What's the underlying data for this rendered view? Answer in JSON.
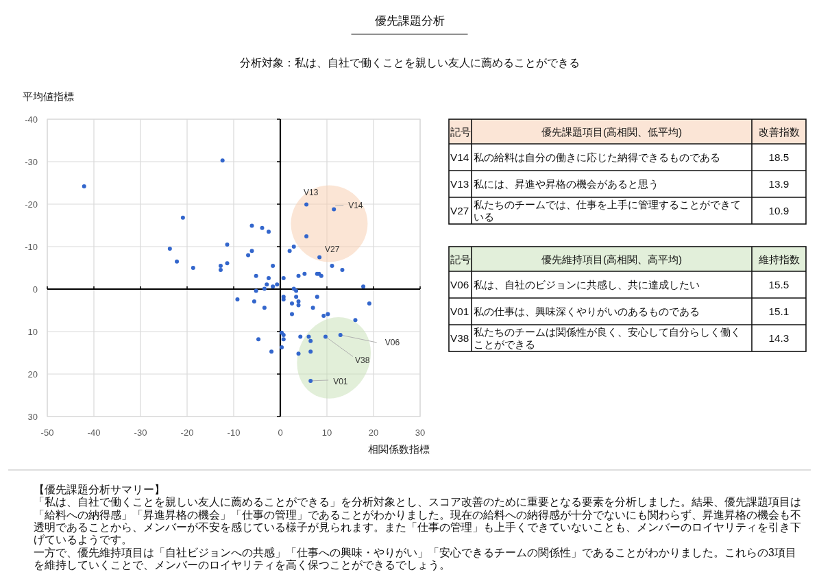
{
  "chart_data": [
    {
      "type": "scatter",
      "title": "優先課題分析",
      "subtitle": "分析対象：私は、自社で働くことを親しい友人に薦めることができる",
      "xlabel": "相関係数指標",
      "ylabel": "平均値指標",
      "xlim": [
        -50,
        30
      ],
      "xticks": [
        -50,
        -40,
        -30,
        -20,
        -10,
        0,
        10,
        20,
        30
      ],
      "ylim": [
        30,
        -40
      ],
      "yticks": [
        -40,
        -30,
        -20,
        -10,
        0,
        10,
        20,
        30
      ],
      "grid": true,
      "marker": "circle",
      "color": "#3366cc",
      "x": [
        -12.4,
        -42.1,
        -20.9,
        -11.4,
        -23.7,
        -22.2,
        -18.7,
        -12.8,
        -12.8,
        -11.4,
        -9.2,
        5.6,
        11.5,
        5.6,
        8.4,
        11.1,
        13.3,
        2.0,
        2.9,
        -6.1,
        -3.9,
        -2.5,
        -6.1,
        -6.9,
        -1.6,
        -5.2,
        -2.5,
        0.7,
        3.9,
        5.2,
        7.9,
        8.3,
        8.8,
        -2.9,
        -1.6,
        -0.7,
        -3.4,
        -5.2,
        2.9,
        3.4,
        17.8,
        -5.6,
        0.7,
        0.7,
        3.4,
        3.9,
        2.5,
        3.9,
        7.9,
        19.1,
        -3.4,
        7.0,
        2.5,
        9.3,
        10.2,
        16.1,
        0.3,
        0.7,
        0.7,
        -4.7,
        4.3,
        6.1,
        6.5,
        9.7,
        12.9,
        0.3,
        -1.9,
        3.9,
        6.5,
        6.5
      ],
      "values": [
        -30.3,
        -24.2,
        -16.8,
        -10.5,
        -9.5,
        -6.5,
        -5.0,
        -5.5,
        -4.5,
        -6.1,
        2.4,
        -19.9,
        -18.8,
        -12.4,
        -7.5,
        -5.5,
        -4.5,
        -9.0,
        -10.0,
        -14.9,
        -14.4,
        -13.5,
        -9.0,
        -8.0,
        -5.5,
        -3.1,
        -2.6,
        -2.6,
        -3.1,
        -3.6,
        -3.6,
        -3.6,
        -3.1,
        -1.1,
        -0.6,
        -1.1,
        -0.1,
        0.4,
        -0.1,
        0.4,
        -0.6,
        2.9,
        1.8,
        2.4,
        1.8,
        2.9,
        3.4,
        3.8,
        1.8,
        3.4,
        4.4,
        4.4,
        5.9,
        6.3,
        5.9,
        7.3,
        10.3,
        10.8,
        11.8,
        11.8,
        11.2,
        11.2,
        12.2,
        11.2,
        10.8,
        13.7,
        14.7,
        15.2,
        14.7,
        21.6
      ],
      "annotations": [
        {
          "text": "V13",
          "x": 5.6,
          "y": -19.9
        },
        {
          "text": "V14",
          "x": 11.5,
          "y": -18.8
        },
        {
          "text": "V27",
          "x": 8.4,
          "y": -7.5
        },
        {
          "text": "V06",
          "x": 12.9,
          "y": 10.8
        },
        {
          "text": "V38",
          "x": 9.7,
          "y": 11.2
        },
        {
          "text": "V01",
          "x": 6.5,
          "y": 21.6
        },
        "【優先課題分析サマリー】",
        "「私は、自社で働くことを親しい友人に薦めることができる」を分析対象とし、スコア改善のために重要となる要素を分析しました。結果、優先課題項目は「給料への納得感」「昇進昇格の機会」「仕事の管理」であることがわかりました。現在の給料への納得感が十分でないにも関わらず、昇進昇格の機会も不透明であることから、メンバーが不安を感じている様子が見られます。また「仕事の管理」も上手くできていないことも、メンバーのロイヤリティを引き下げているようです。",
        "一方で、優先維持項目は「自社ビジョンへの共感」「仕事への興味・やりがい」「安心できるチームの関係性」であることがわかりました。これらの3項目を維持していくことで、メンバーのロイヤリティを高く保つことができるでしょう。"
      ]
    },
    {
      "type": "other",
      "title": "優先課題項目(高相関、低平均)",
      "annotations": [
        "記号",
        "改善指数"
      ],
      "categories": [
        "V14",
        "V13",
        "V27"
      ],
      "y2_categories": [
        "私の給料は自分の働きに応じた納得できるものである",
        "私には、昇進や昇格の機会があると思う",
        "私たちのチームでは、仕事を上手に管理することができている"
      ],
      "values": [
        18.5,
        13.9,
        10.9
      ],
      "data_labels": true,
      "color": "#fbe5d6"
    },
    {
      "type": "other",
      "title": "優先維持項目(高相関、高平均)",
      "annotations": [
        "記号",
        "維持指数"
      ],
      "categories": [
        "V06",
        "V01",
        "V38"
      ],
      "y2_categories": [
        "私は、自社のビジョンに共感し、共に達成したい",
        "私の仕事は、興味深くやりがいのあるものである",
        "私たちのチームは関係性が良く、安心して自分らしく働くことができる"
      ],
      "values": [
        15.5,
        15.1,
        14.3
      ],
      "data_labels": true,
      "color": "#e2efda"
    }
  ]
}
